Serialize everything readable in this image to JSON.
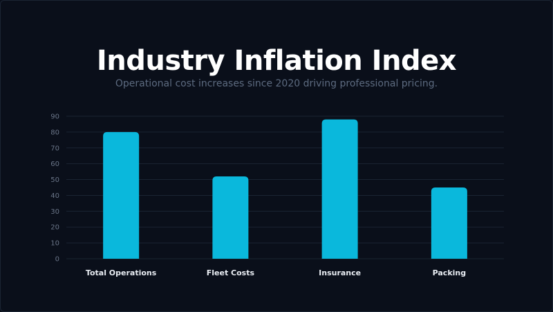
{
  "chart_data": {
    "type": "bar",
    "title": "Industry Inflation Index",
    "subtitle": "Operational cost increases since 2020 driving professional pricing.",
    "categories": [
      "Total Operations",
      "Fleet Costs",
      "Insurance",
      "Packing"
    ],
    "values": [
      80,
      52,
      88,
      45
    ],
    "ylim": [
      0,
      90
    ],
    "yticks": [
      0,
      10,
      20,
      30,
      40,
      50,
      60,
      70,
      80,
      90
    ],
    "grid": true,
    "bar_color": "#0ab8dc"
  },
  "colors": {
    "background": "#0a0f1a",
    "gridline": "#1a2433",
    "subtitle": "#5d6b80"
  }
}
